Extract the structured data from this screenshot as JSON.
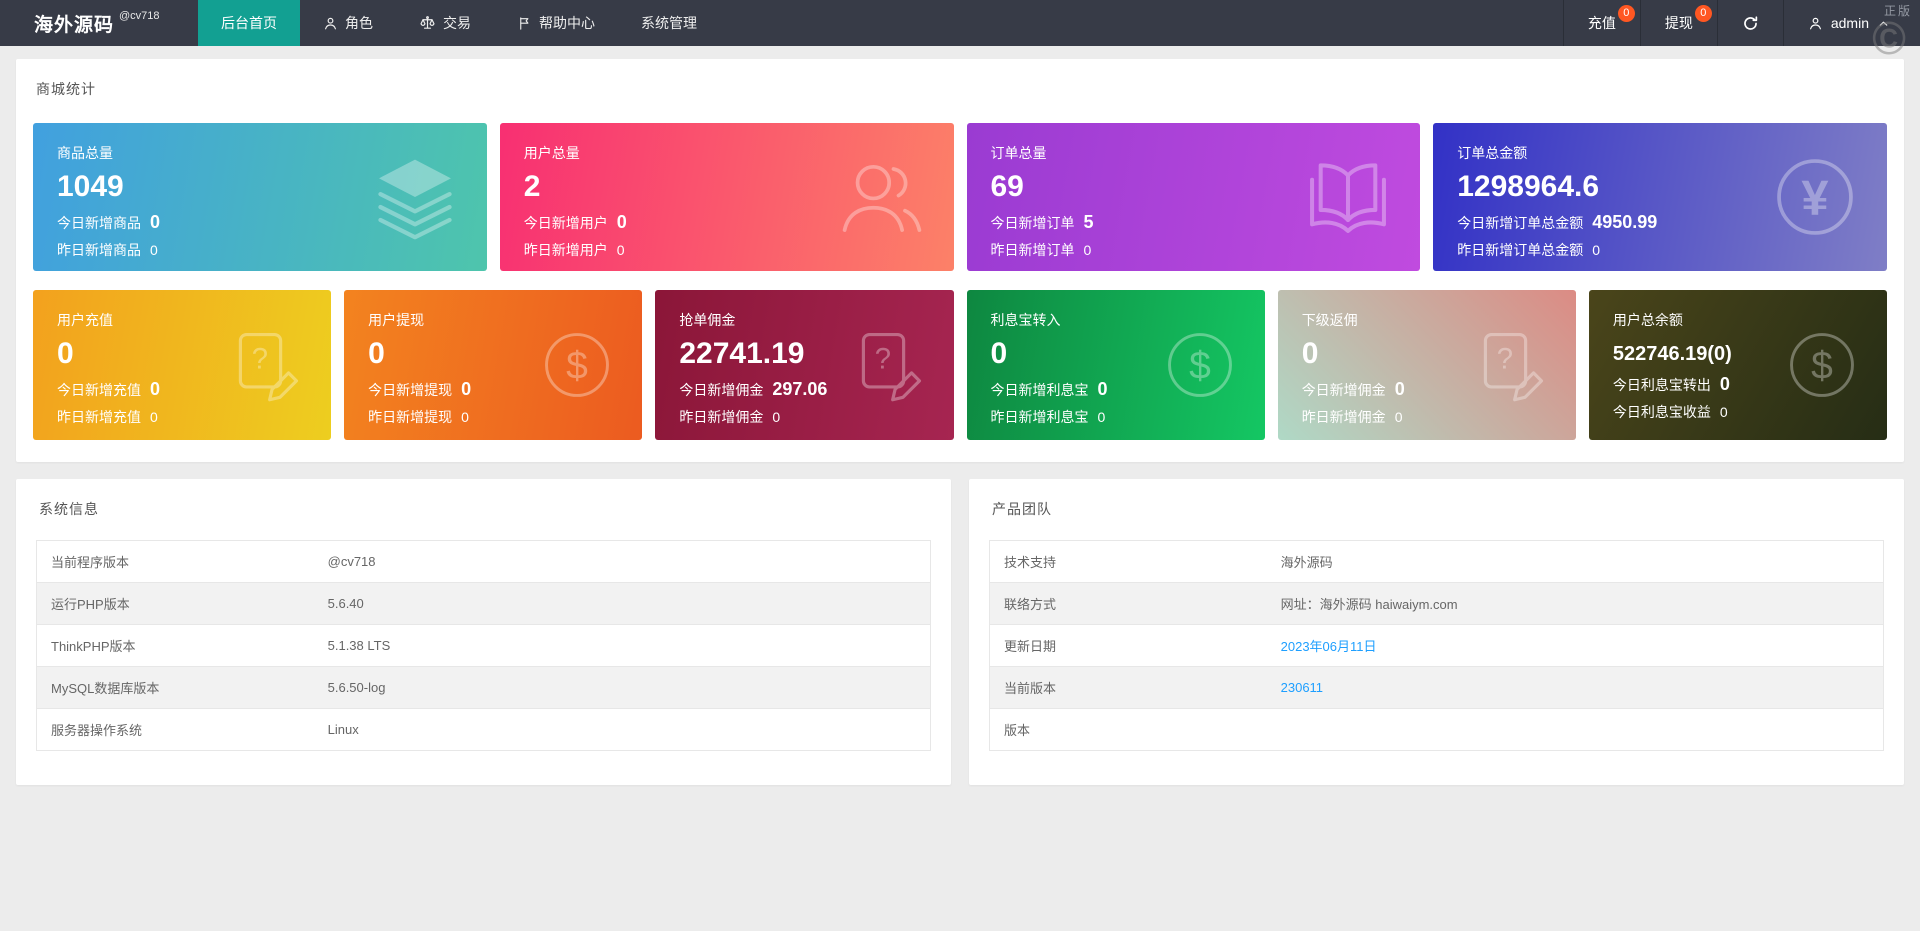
{
  "colors": {
    "navbar_bg": "#373B47",
    "active_tab": "#12A092",
    "badge": "#FF5722",
    "link": "#1E9FFF",
    "body_bg": "#ECECEC"
  },
  "navbar": {
    "logo": "海外源码",
    "logo_badge": "@cv718",
    "menu": [
      {
        "id": "home",
        "label": "后台首页",
        "icon": "",
        "active": true
      },
      {
        "id": "roles",
        "label": "角色",
        "icon": "user",
        "active": false
      },
      {
        "id": "trade",
        "label": "交易",
        "icon": "scales",
        "active": false
      },
      {
        "id": "help",
        "label": "帮助中心",
        "icon": "flag",
        "active": false
      },
      {
        "id": "system",
        "label": "系统管理",
        "icon": "",
        "active": false
      }
    ],
    "quick": [
      {
        "id": "recharge",
        "label": "充值",
        "badge": "0"
      },
      {
        "id": "withdraw",
        "label": "提现",
        "badge": "0"
      }
    ],
    "admin_label": "admin"
  },
  "watermark": {
    "label": "正版",
    "seal": "©"
  },
  "stats": {
    "title": "商城统计",
    "row1": [
      {
        "title": "商品总量",
        "value": "1049",
        "today_label": "今日新增商品",
        "today_value": "0",
        "yesterday_label": "昨日新增商品",
        "yesterday_value": "0",
        "icon": "layers",
        "gradient": [
          "#41A0DF",
          "#4EC5AC"
        ],
        "angle": "100deg"
      },
      {
        "title": "用户总量",
        "value": "2",
        "today_label": "今日新增用户",
        "today_value": "0",
        "yesterday_label": "昨日新增用户",
        "yesterday_value": "0",
        "icon": "users",
        "gradient": [
          "#F82F72",
          "#FC8168"
        ],
        "angle": "100deg"
      },
      {
        "title": "订单总量",
        "value": "69",
        "today_label": "今日新增订单",
        "today_value": "5",
        "yesterday_label": "昨日新增订单",
        "yesterday_value": "0",
        "icon": "book",
        "gradient": [
          "#9A3BD2",
          "#C04BDF"
        ],
        "angle": "100deg"
      },
      {
        "title": "订单总金额",
        "value": "1298964.6",
        "today_label": "今日新增订单总金额",
        "today_value": "4950.99",
        "yesterday_label": "昨日新增订单总金额",
        "yesterday_value": "0",
        "icon": "yen",
        "gradient": [
          "#3231C6",
          "#7F7EC6"
        ],
        "angle": "100deg"
      }
    ],
    "row2": [
      {
        "title": "用户充值",
        "value": "0",
        "today_label": "今日新增充值",
        "today_value": "0",
        "yesterday_label": "昨日新增充值",
        "yesterday_value": "0",
        "icon": "file-edit",
        "gradient": [
          "#F3A11E",
          "#EDCE1F"
        ],
        "angle": "100deg"
      },
      {
        "title": "用户提现",
        "value": "0",
        "today_label": "今日新增提现",
        "today_value": "0",
        "yesterday_label": "昨日新增提现",
        "yesterday_value": "0",
        "icon": "dollar",
        "gradient": [
          "#F3831F",
          "#EC5B20"
        ],
        "angle": "100deg"
      },
      {
        "title": "抢单佣金",
        "value": "22741.19",
        "today_label": "今日新增佣金",
        "today_value": "297.06",
        "yesterday_label": "昨日新增佣金",
        "yesterday_value": "0",
        "icon": "file-edit",
        "gradient": [
          "#8B1638",
          "#A62551"
        ],
        "angle": "100deg"
      },
      {
        "title": "利息宝转入",
        "value": "0",
        "today_label": "今日新增利息宝",
        "today_value": "0",
        "yesterday_label": "昨日新增利息宝",
        "yesterday_value": "0",
        "icon": "dollar",
        "gradient": [
          "#0E8740",
          "#14C763"
        ],
        "angle": "100deg"
      },
      {
        "title": "下级返佣",
        "value": "0",
        "today_label": "今日新增佣金",
        "today_value": "0",
        "yesterday_label": "昨日新增佣金",
        "yesterday_value": "0",
        "icon": "file-edit",
        "gradient": [
          "#AFD9C6",
          "#DC8B84"
        ],
        "angle": "45deg"
      },
      {
        "title": "用户总余额",
        "value": "522746.19(0)",
        "today_label": "今日利息宝转出",
        "today_value": "0",
        "yesterday_label": "今日利息宝收益",
        "yesterday_value": "0",
        "icon": "dollar",
        "gradient": [
          "#4A451A",
          "#262D15"
        ],
        "angle": "120deg"
      }
    ]
  },
  "system_info": {
    "title": "系统信息",
    "rows": [
      {
        "label": "当前程序版本",
        "value": "@cv718",
        "link": false
      },
      {
        "label": "运行PHP版本",
        "value": "5.6.40",
        "link": false
      },
      {
        "label": "ThinkPHP版本",
        "value": "5.1.38 LTS",
        "link": false
      },
      {
        "label": "MySQL数据库版本",
        "value": "5.6.50-log",
        "link": false
      },
      {
        "label": "服务器操作系统",
        "value": "Linux",
        "link": false
      }
    ]
  },
  "product_team": {
    "title": "产品团队",
    "rows": [
      {
        "label": "技术支持",
        "value": "海外源码",
        "link": false
      },
      {
        "label": "联络方式",
        "value": "网址：海外源码 haiwaiym.com",
        "link": false
      },
      {
        "label": "更新日期",
        "value": "2023年06月11日",
        "link": true
      },
      {
        "label": "当前版本",
        "value": "230611",
        "link": true
      },
      {
        "label": "版本",
        "value": "",
        "link": false
      }
    ]
  }
}
